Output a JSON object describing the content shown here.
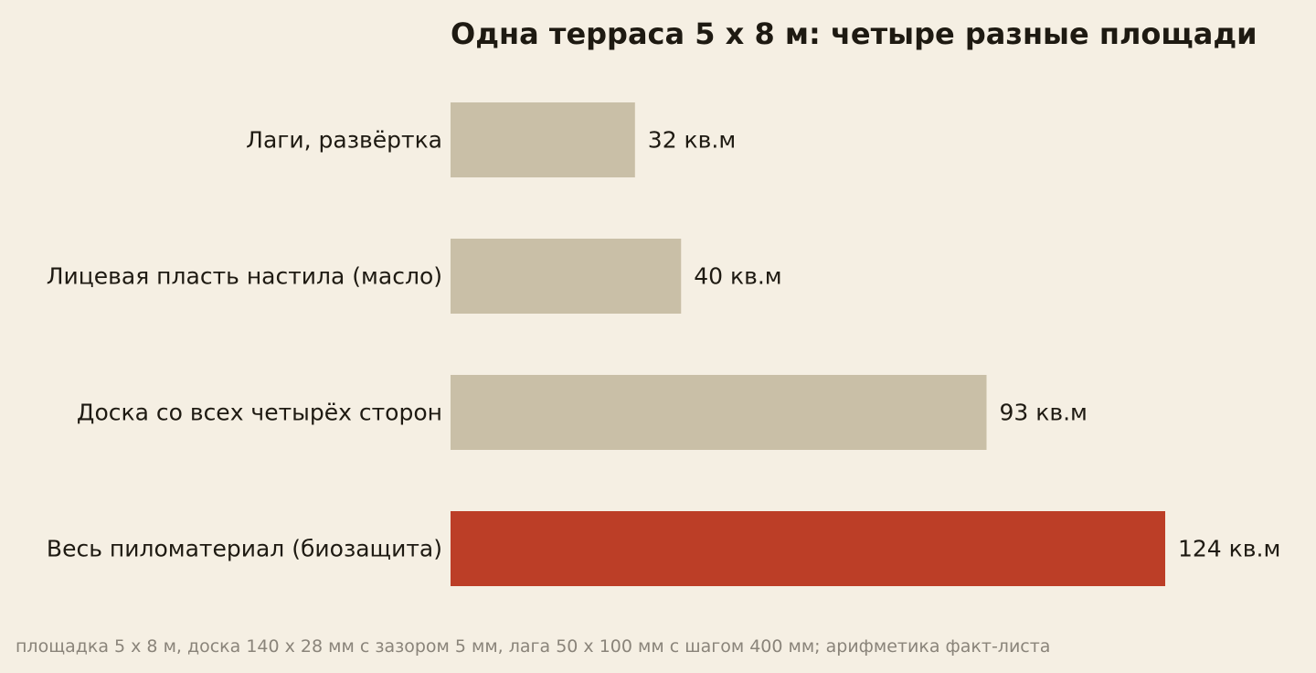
{
  "chart_data": {
    "type": "bar",
    "orientation": "horizontal",
    "title": "Одна терраса 5 х 8 м: четыре разные площади",
    "categories": [
      "Лаги, развёртка",
      "Лицевая пласть настила (масло)",
      "Доска со всех четырёх сторон",
      "Весь пиломатериал (биозащита)"
    ],
    "values": [
      32,
      40,
      93,
      124
    ],
    "value_labels": [
      "32 кв.м",
      "40 кв.м",
      "93 кв.м",
      "124 кв.м"
    ],
    "unit": "кв.м",
    "xlim": [
      0,
      124
    ],
    "grid": false,
    "axes_visible": false,
    "colors": {
      "default_bar": "#c9bfa7",
      "highlight_bar": "#bc3e27",
      "background": "#f5efe3",
      "text": "#1e1a12",
      "note": "#8a847a"
    },
    "highlight_index": 3,
    "note": "площадка 5 х 8 м, доска 140 х 28 мм с зазором 5 мм, лага 50 х 100 мм с шагом 400 мм; арифметика факт-листа"
  }
}
